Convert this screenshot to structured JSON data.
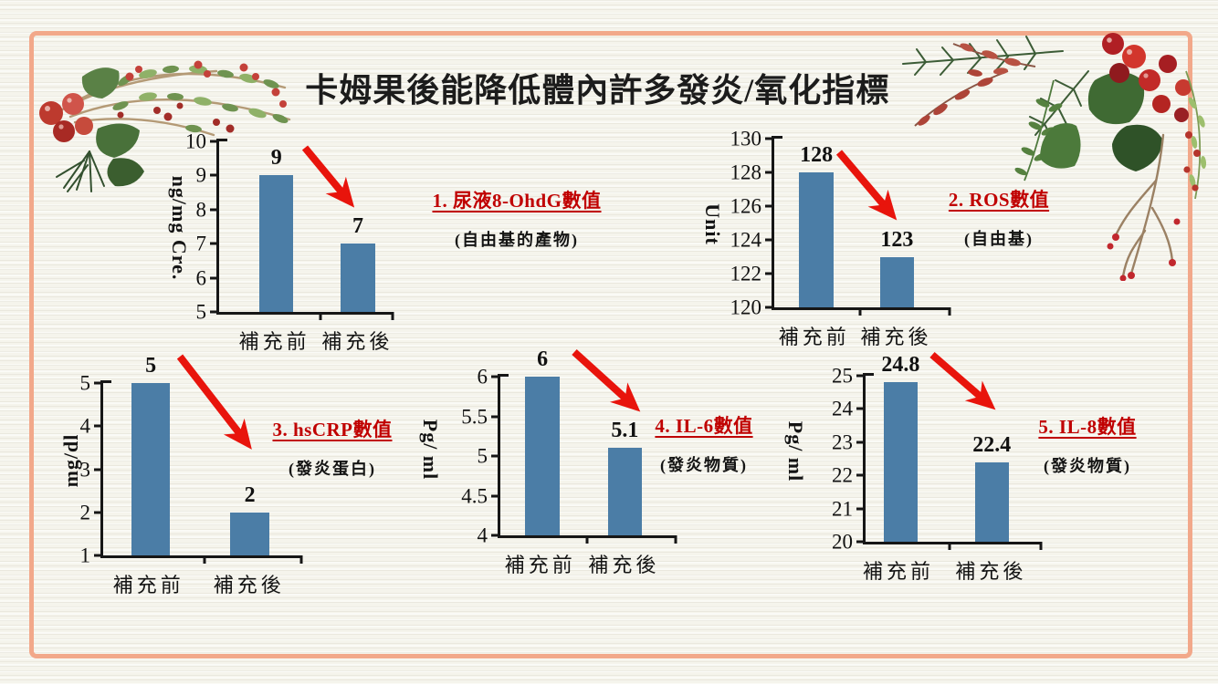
{
  "slide": {
    "title": "卡姆果後能降低體內許多發炎/氧化指標",
    "background_color": "#f5f4ec",
    "border_color": "#f2a88a",
    "bar_color": "#4b7da6",
    "axis_color": "#161616",
    "annotation_color": "#c00000",
    "arrow_color": "#e8140c"
  },
  "decorations": {
    "top_left": "christmas-holly-berry-branch",
    "top_right": "christmas-holly-berry-arrangement"
  },
  "chart_data": [
    {
      "type": "bar",
      "name": "urine-8-OhdG",
      "label": "1. 尿液8-OhdG數值",
      "sublabel": "(自由基的產物)",
      "ylabel": "ng/mg Cre.",
      "ylim": [
        5,
        10
      ],
      "yticks": [
        5,
        6,
        7,
        8,
        9,
        10
      ],
      "categories": [
        "補充前",
        "補充後"
      ],
      "values": [
        9,
        7
      ],
      "annotation_shape": "red-decrease-arrow"
    },
    {
      "type": "bar",
      "name": "ROS",
      "label": "2. ROS數值",
      "sublabel": "(自由基)",
      "ylabel": "Unit",
      "ylim": [
        120,
        130
      ],
      "yticks": [
        120,
        122,
        124,
        126,
        128,
        130
      ],
      "categories": [
        "補充前",
        "補充後"
      ],
      "values": [
        128,
        123
      ],
      "annotation_shape": "red-decrease-arrow"
    },
    {
      "type": "bar",
      "name": "hsCRP",
      "label": "3. hsCRP數值",
      "sublabel": "(發炎蛋白)",
      "ylabel": "mg/dl",
      "ylim": [
        1,
        5
      ],
      "yticks": [
        1,
        2,
        3,
        4,
        5
      ],
      "categories": [
        "補充前",
        "補充後"
      ],
      "values": [
        5,
        2
      ],
      "annotation_shape": "red-decrease-arrow"
    },
    {
      "type": "bar",
      "name": "IL-6",
      "label": "4. IL-6數值",
      "sublabel": "(發炎物質)",
      "ylabel": "Pg/ ml",
      "ylim": [
        4,
        6
      ],
      "yticks": [
        4,
        4.5,
        5,
        5.5,
        6
      ],
      "categories": [
        "補充前",
        "補充後"
      ],
      "values": [
        6,
        5.1
      ],
      "annotation_shape": "red-decrease-arrow"
    },
    {
      "type": "bar",
      "name": "IL-8",
      "label": "5. IL-8數值",
      "sublabel": "(發炎物質)",
      "ylabel": "Pg/ ml",
      "ylim": [
        20,
        25
      ],
      "yticks": [
        20,
        21,
        22,
        23,
        24,
        25
      ],
      "categories": [
        "補充前",
        "補充後"
      ],
      "values": [
        24.8,
        22.4
      ],
      "annotation_shape": "red-decrease-arrow"
    }
  ]
}
